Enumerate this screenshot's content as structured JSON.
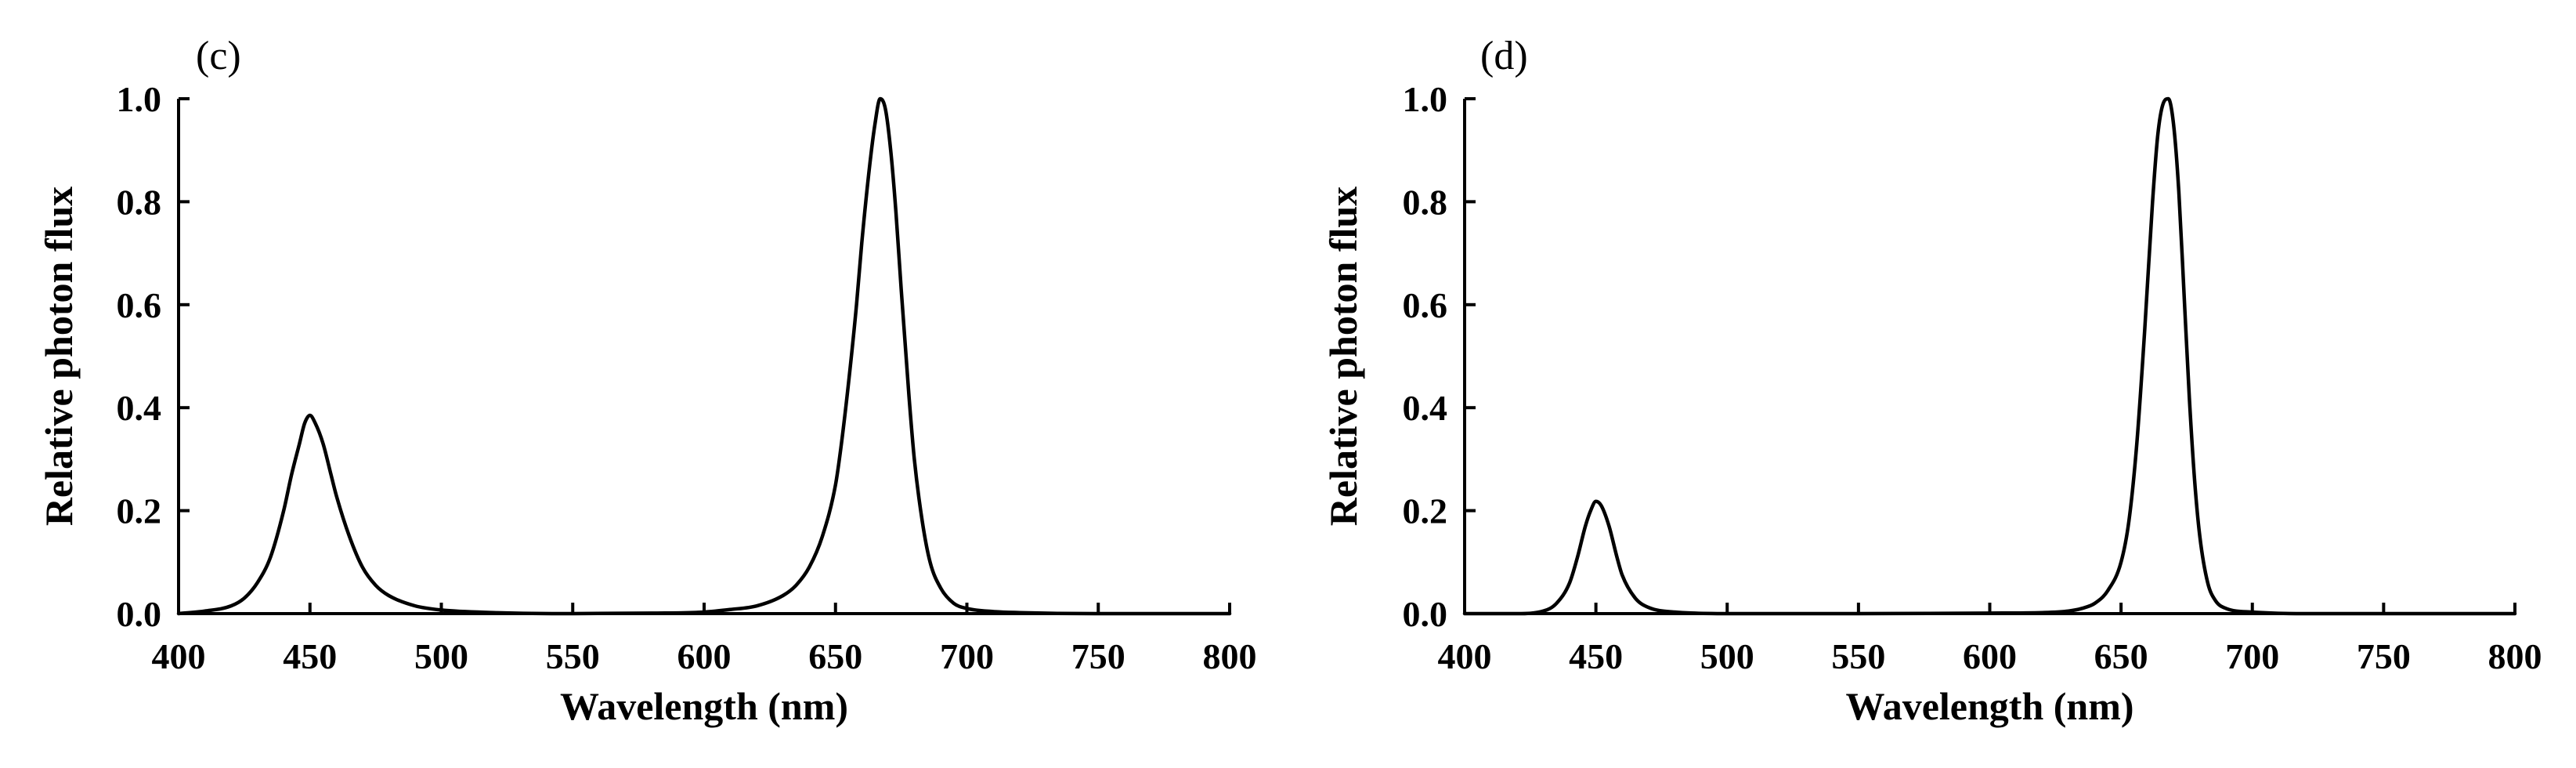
{
  "chart_data": [
    {
      "type": "line",
      "panel_label": "(c)",
      "title": "",
      "xlabel": "Wavelength (nm)",
      "ylabel": "Relative photon flux",
      "xlim": [
        400,
        800
      ],
      "ylim": [
        0.0,
        1.0
      ],
      "xticks": [
        "400",
        "450",
        "500",
        "550",
        "600",
        "650",
        "700",
        "750",
        "800"
      ],
      "yticks": [
        "0.0",
        "0.2",
        "0.4",
        "0.6",
        "0.8",
        "1.0"
      ],
      "grid": false,
      "line_color": "#000000",
      "series": [
        {
          "x": [
            400,
            410,
            420,
            425,
            430,
            435,
            440,
            443,
            446,
            448,
            450,
            452,
            455,
            458,
            460,
            465,
            470,
            475,
            480,
            490,
            500,
            520,
            550,
            580,
            600,
            610,
            620,
            630,
            635,
            640,
            645,
            650,
            652,
            655,
            658,
            660,
            663,
            665,
            667,
            669,
            671,
            673,
            675,
            678,
            680,
            683,
            686,
            690,
            695,
            700,
            710,
            720,
            750,
            800
          ],
          "y": [
            0.0,
            0.005,
            0.015,
            0.03,
            0.06,
            0.11,
            0.2,
            0.27,
            0.33,
            0.37,
            0.385,
            0.37,
            0.33,
            0.27,
            0.23,
            0.15,
            0.09,
            0.055,
            0.035,
            0.015,
            0.007,
            0.002,
            0.0,
            0.001,
            0.003,
            0.008,
            0.015,
            0.035,
            0.055,
            0.09,
            0.15,
            0.25,
            0.32,
            0.45,
            0.6,
            0.72,
            0.87,
            0.95,
            1.0,
            0.98,
            0.9,
            0.78,
            0.63,
            0.42,
            0.3,
            0.18,
            0.1,
            0.05,
            0.02,
            0.01,
            0.004,
            0.002,
            0.0,
            0.0
          ]
        }
      ]
    },
    {
      "type": "line",
      "panel_label": "(d)",
      "title": "",
      "xlabel": "Wavelength (nm)",
      "ylabel": "Relative photon flux",
      "xlim": [
        400,
        800
      ],
      "ylim": [
        0.0,
        1.0
      ],
      "xticks": [
        "400",
        "450",
        "500",
        "550",
        "600",
        "650",
        "700",
        "750",
        "800"
      ],
      "yticks": [
        "0.0",
        "0.2",
        "0.4",
        "0.6",
        "0.8",
        "1.0"
      ],
      "grid": false,
      "line_color": "#000000",
      "series": [
        {
          "x": [
            400,
            420,
            430,
            435,
            440,
            443,
            446,
            448,
            450,
            452,
            455,
            458,
            460,
            465,
            470,
            480,
            500,
            550,
            600,
            620,
            630,
            635,
            640,
            645,
            650,
            653,
            656,
            659,
            662,
            664,
            666,
            668,
            670,
            672,
            674,
            676,
            678,
            680,
            683,
            686,
            690,
            700,
            720,
            800
          ],
          "y": [
            0.0,
            0.0,
            0.005,
            0.02,
            0.06,
            0.11,
            0.17,
            0.2,
            0.218,
            0.21,
            0.17,
            0.11,
            0.075,
            0.03,
            0.012,
            0.003,
            0.0,
            0.0,
            0.001,
            0.002,
            0.005,
            0.01,
            0.02,
            0.045,
            0.1,
            0.18,
            0.33,
            0.55,
            0.8,
            0.93,
            0.99,
            1.0,
            0.95,
            0.82,
            0.62,
            0.42,
            0.26,
            0.15,
            0.06,
            0.025,
            0.01,
            0.003,
            0.0,
            0.0
          ]
        }
      ]
    }
  ]
}
